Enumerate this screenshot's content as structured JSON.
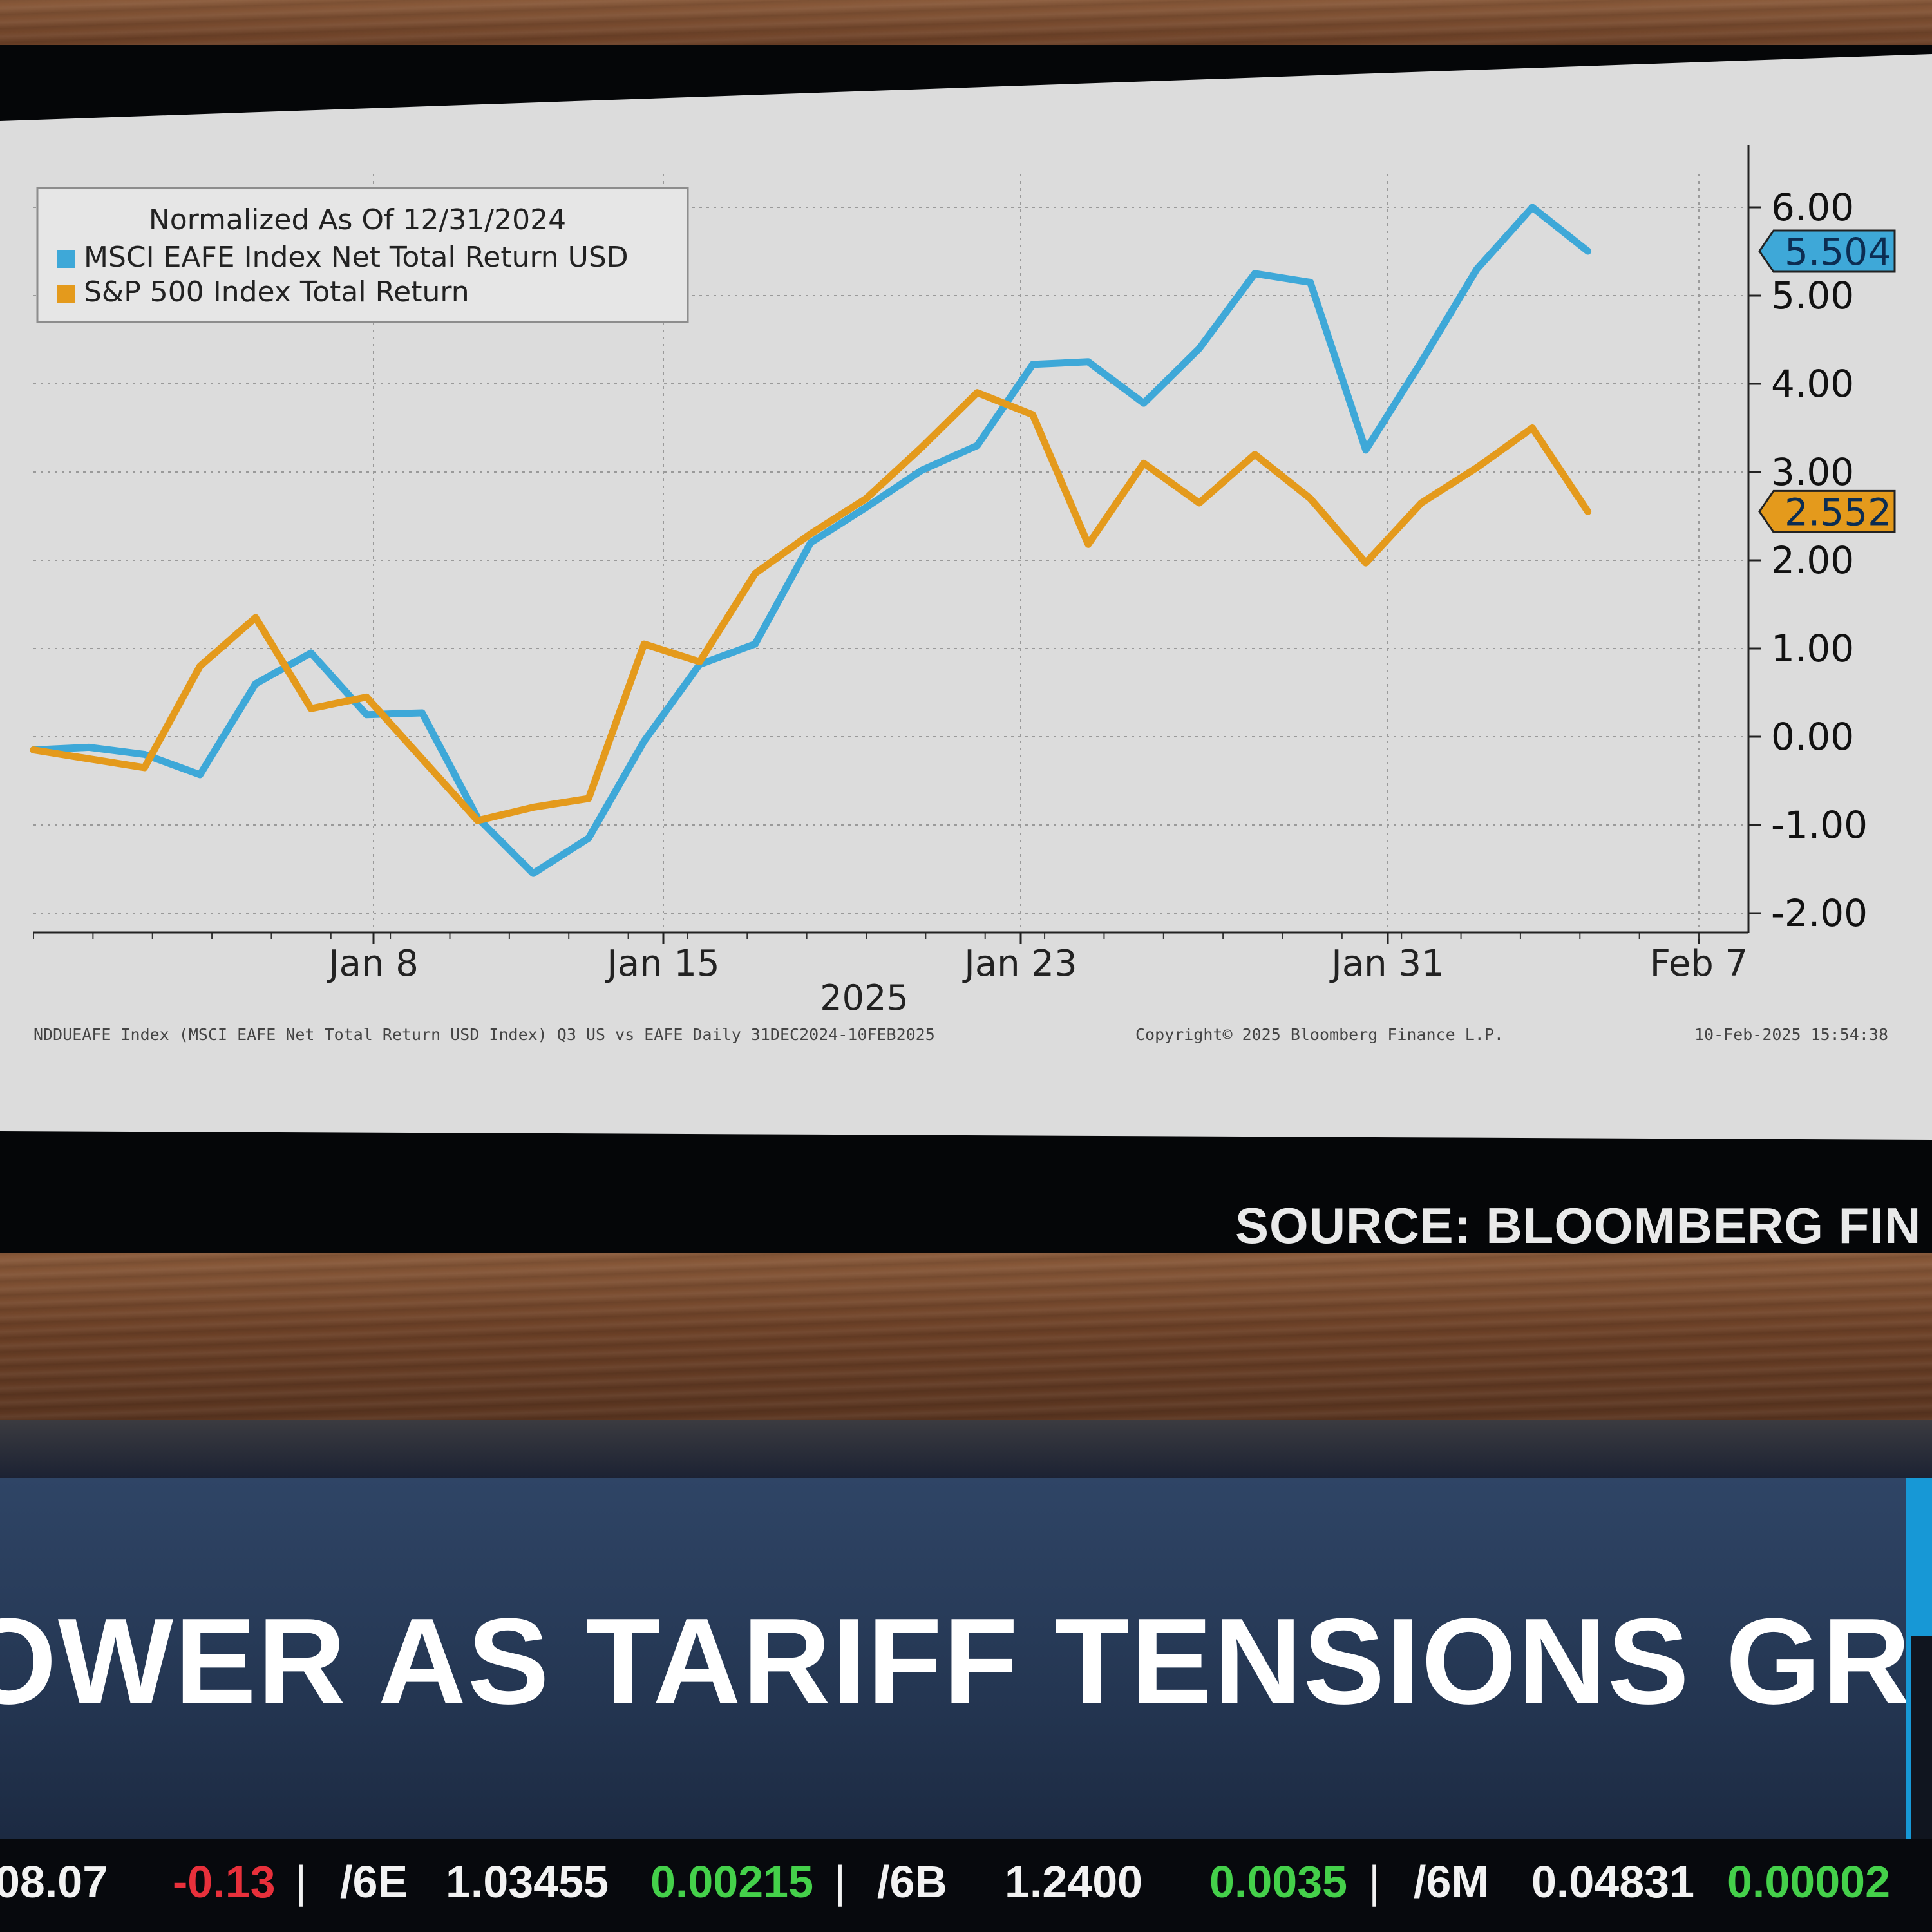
{
  "chart_data": {
    "type": "line",
    "legend": {
      "title": "Normalized As Of 12/31/2024",
      "placement": "top-left"
    },
    "x_tick_labels": [
      "Jan 8",
      "Jan 15",
      "Jan 23",
      "Jan 31",
      "Feb 7"
    ],
    "x_year_label": "2025",
    "y_tick_labels": [
      "6.00",
      "5.00",
      "4.00",
      "3.00",
      "2.00",
      "1.00",
      "0.00",
      "-1.00",
      "-2.00"
    ],
    "ylim": [
      -2.2,
      6.4
    ],
    "x_range": [
      0,
      30
    ],
    "grid": true,
    "series": [
      {
        "name": "MSCI EAFE Index Net Total Return USD",
        "color": "#3ea8d8",
        "last_value_label": "5.504",
        "x": [
          0,
          1,
          2,
          3,
          4,
          5,
          6,
          7,
          8,
          9,
          10,
          11,
          12,
          13,
          14,
          15,
          16,
          17,
          18,
          19,
          20,
          21,
          22,
          23,
          24,
          25,
          26,
          27,
          28,
          29
        ],
        "values": [
          -0.15,
          -0.12,
          -0.2,
          -0.43,
          0.6,
          0.95,
          0.25,
          0.27,
          -0.92,
          -1.55,
          -1.15,
          -0.05,
          0.82,
          1.05,
          2.2,
          2.6,
          3.02,
          3.3,
          4.22,
          4.25,
          3.78,
          4.4,
          5.25,
          5.15,
          3.25,
          4.25,
          5.3,
          6.0,
          5.504,
          5.504
        ]
      },
      {
        "name": "S&P 500 Index Total Return",
        "color": "#e49a1c",
        "last_value_label": "2.552",
        "x": [
          0,
          1,
          2,
          3,
          4,
          5,
          6,
          7,
          8,
          9,
          10,
          11,
          12,
          13,
          14,
          15,
          16,
          17,
          18,
          19,
          20,
          21,
          22,
          23,
          24,
          25,
          26,
          27,
          28,
          29
        ],
        "values": [
          -0.15,
          -0.25,
          -0.35,
          0.8,
          1.35,
          0.32,
          0.45,
          -0.25,
          -0.95,
          -0.8,
          -0.7,
          1.05,
          0.85,
          1.85,
          2.3,
          2.7,
          3.28,
          3.9,
          3.65,
          2.18,
          3.1,
          2.65,
          3.2,
          2.7,
          1.97,
          2.65,
          3.05,
          3.5,
          2.552,
          2.552
        ]
      }
    ]
  },
  "chart_footer": {
    "description": "NDDUEAFE Index (MSCI EAFE Net Total Return USD Index) Q3 US vs EAFE  Daily 31DEC2024-10FEB2025",
    "copyright": "Copyright© 2025 Bloomberg Finance L.P.",
    "timestamp": "10-Feb-2025 15:54:38"
  },
  "source": "SOURCE: BLOOMBERG FIN",
  "headline": "OWER AS TARIFF TENSIONS GROW",
  "ticker": [
    {
      "text": "08.07",
      "tone": "white"
    },
    {
      "text": "-0.13",
      "tone": "red"
    },
    {
      "text": "|",
      "tone": "sep"
    },
    {
      "text": "/6E",
      "tone": "white"
    },
    {
      "text": "1.03455",
      "tone": "white"
    },
    {
      "text": "0.00215",
      "tone": "green"
    },
    {
      "text": "|",
      "tone": "sep"
    },
    {
      "text": "/6B",
      "tone": "white"
    },
    {
      "text": "1.2400",
      "tone": "white"
    },
    {
      "text": "0.0035",
      "tone": "green"
    },
    {
      "text": "|",
      "tone": "sep"
    },
    {
      "text": "/6M",
      "tone": "white"
    },
    {
      "text": "0.04831",
      "tone": "white"
    },
    {
      "text": "0.00002",
      "tone": "green"
    }
  ],
  "colors": {
    "chart_background": "#dcdcdc",
    "headline_band": "#2b3f5e",
    "accent": "#1798d6",
    "ticker_positive": "#44d04a",
    "ticker_negative": "#e8303b"
  }
}
